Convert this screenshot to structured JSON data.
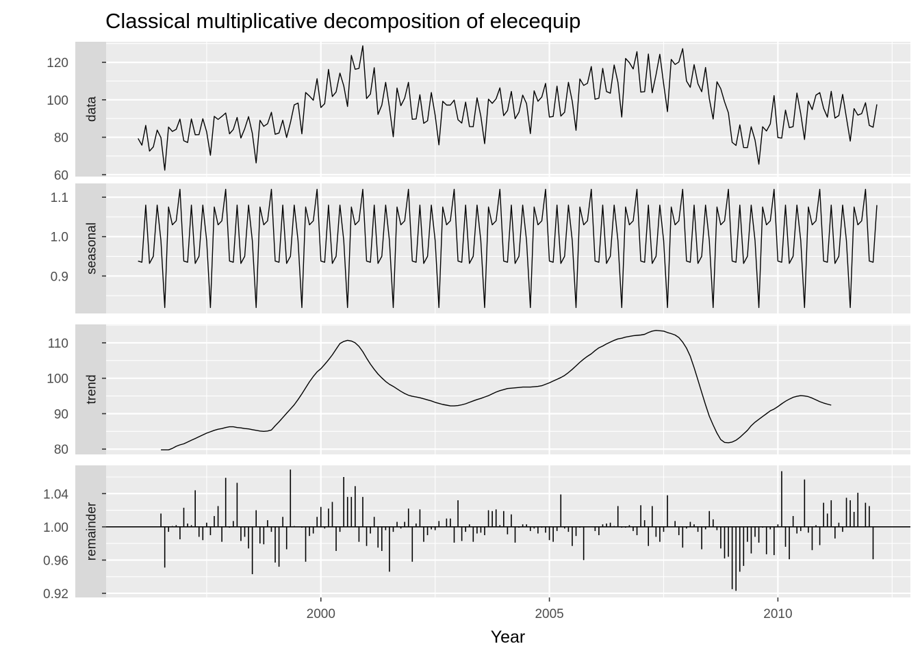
{
  "chart_data": {
    "type": "line",
    "title": "Classical multiplicative decomposition of elecequip",
    "xlabel": "Year",
    "x_start": 1996.0,
    "frequency": 12,
    "xlim": [
      1995.3,
      2012.9
    ],
    "x_ticks": [
      2000,
      2005,
      2010
    ],
    "x_tick_labels": [
      "2000",
      "2005",
      "2010"
    ],
    "panels": [
      {
        "name": "data",
        "ylim": [
          59,
          131
        ],
        "y_ticks": [
          60,
          80,
          100,
          120
        ],
        "y_tick_labels": [
          "60",
          "80",
          "100",
          "120"
        ],
        "values": [
          79.35,
          75.78,
          86.32,
          72.6,
          74.86,
          83.81,
          79.8,
          62.41,
          85.41,
          83.11,
          84.21,
          89.7,
          78.16,
          77.19,
          89.76,
          81.33,
          81.4,
          89.87,
          82.88,
          70.36,
          91.11,
          89.51,
          91.12,
          92.97,
          81.85,
          84.14,
          90.57,
          79.58,
          84.56,
          91.01,
          82.13,
          66.28,
          89.06,
          85.83,
          87.21,
          93.32,
          81.58,
          82.28,
          89.12,
          79.89,
          87.82,
          97.27,
          98.25,
          81.86,
          103.88,
          102.01,
          99.75,
          111.28,
          95.88,
          97.92,
          116.18,
          101.75,
          104.19,
          114.25,
          107.46,
          96.44,
          123.68,
          116.31,
          116.77,
          128.84,
          100.65,
          103.08,
          117.13,
          92.2,
          97.14,
          109.34,
          95.84,
          80.27,
          106.25,
          96.88,
          100.9,
          109.31,
          89.6,
          89.77,
          102.72,
          87.44,
          88.83,
          103.87,
          91.76,
          75.92,
          99.22,
          97.2,
          97.2,
          99.81,
          89.34,
          87.57,
          98.75,
          85.73,
          85.66,
          101.07,
          91.34,
          76.59,
          100.34,
          98.12,
          100.53,
          106.38,
          91.56,
          94.22,
          104.46,
          89.93,
          93.37,
          102.49,
          97.99,
          81.94,
          104.8,
          99.2,
          101.5,
          108.75,
          90.75,
          91.09,
          107.29,
          91.31,
          93.36,
          109.34,
          99.22,
          83.69,
          111.15,
          107.7,
          108.8,
          117.77,
          100.31,
          100.89,
          116.79,
          104.43,
          103.51,
          118.57,
          109.37,
          90.8,
          122.1,
          119.84,
          116.5,
          125.72,
          104.1,
          104.37,
          124.47,
          103.72,
          113.45,
          124.3,
          108.5,
          93.7,
          121.58,
          118.85,
          120.15,
          127.3,
          110.03,
          106.66,
          118.74,
          108.57,
          104.33,
          117.26,
          100.64,
          89.72,
          109.62,
          105.92,
          98.9,
          93.01,
          77.26,
          75.62,
          86.61,
          74.5,
          74.47,
          85.6,
          78.49,
          65.6,
          85.62,
          83.33,
          87.16,
          102.23,
          79.83,
          79.54,
          94.49,
          85.1,
          85.64,
          103.64,
          92.52,
          78.81,
          99.27,
          94.78,
          102.48,
          103.81,
          95.44,
          90.71,
          104.49,
          90.24,
          91.58,
          102.91,
          90.43,
          77.92,
          95.28,
          91.81,
          92.62,
          98.43,
          86.3,
          85.34,
          97.55
        ]
      },
      {
        "name": "seasonal",
        "ylim": [
          0.805,
          1.135
        ],
        "y_ticks": [
          0.9,
          1.0,
          1.1
        ],
        "y_tick_labels": [
          "0.9",
          "1.0",
          "1.1"
        ],
        "pattern": [
          0.938,
          0.935,
          1.08,
          0.932,
          0.95,
          1.08,
          0.99,
          0.82,
          1.075,
          1.03,
          1.04,
          1.12
        ]
      },
      {
        "name": "trend",
        "ylim": [
          78.5,
          115.2
        ],
        "y_ticks": [
          80,
          90,
          100,
          110
        ],
        "y_tick_labels": [
          "80",
          "90",
          "100",
          "110"
        ],
        "values": [
          null,
          null,
          null,
          null,
          null,
          null,
          79.8,
          79.8,
          79.8,
          80.2,
          80.8,
          81.2,
          81.5,
          82.0,
          82.5,
          83.0,
          83.5,
          84.0,
          84.5,
          84.9,
          85.3,
          85.6,
          85.8,
          86.1,
          86.3,
          86.3,
          86.1,
          86.0,
          85.8,
          85.7,
          85.5,
          85.3,
          85.1,
          85.0,
          85.1,
          85.4,
          86.6,
          87.7,
          88.9,
          90.1,
          91.3,
          92.5,
          94.0,
          95.6,
          97.3,
          99.0,
          100.5,
          101.8,
          102.7,
          103.9,
          105.2,
          106.6,
          108.2,
          109.8,
          110.4,
          110.7,
          110.5,
          110.0,
          109.0,
          107.5,
          105.7,
          104.0,
          102.5,
          101.2,
          100.1,
          99.1,
          98.3,
          97.7,
          97.0,
          96.3,
          95.7,
          95.2,
          94.9,
          94.7,
          94.5,
          94.2,
          93.9,
          93.6,
          93.2,
          92.9,
          92.6,
          92.4,
          92.2,
          92.2,
          92.3,
          92.5,
          92.8,
          93.2,
          93.6,
          94.0,
          94.3,
          94.7,
          95.1,
          95.6,
          96.1,
          96.5,
          96.8,
          97.1,
          97.2,
          97.3,
          97.4,
          97.5,
          97.5,
          97.5,
          97.6,
          97.7,
          97.9,
          98.3,
          98.7,
          99.2,
          99.7,
          100.2,
          100.8,
          101.6,
          102.5,
          103.5,
          104.5,
          105.4,
          106.2,
          106.9,
          107.8,
          108.6,
          109.1,
          109.7,
          110.2,
          110.7,
          111.1,
          111.3,
          111.6,
          111.8,
          112.0,
          112.1,
          112.2,
          112.4,
          112.9,
          113.3,
          113.5,
          113.4,
          113.3,
          112.9,
          112.6,
          112.2,
          111.5,
          110.2,
          108.5,
          106.2,
          103.0,
          99.5,
          96.0,
          92.5,
          89.3,
          86.8,
          84.5,
          82.7,
          81.9,
          81.8,
          82.0,
          82.5,
          83.3,
          84.3,
          85.3,
          86.6,
          87.6,
          88.4,
          89.2,
          90.0,
          90.8,
          91.3,
          92.0,
          92.8,
          93.5,
          94.1,
          94.6,
          94.9,
          95.1,
          95.0,
          94.8,
          94.4,
          93.9,
          93.4,
          93.0,
          92.7,
          92.4,
          null,
          null,
          null,
          null,
          null,
          null
        ]
      },
      {
        "name": "remainder",
        "type": "bar",
        "baseline": 1.0,
        "ylim": [
          0.915,
          1.074
        ],
        "y_ticks": [
          0.92,
          0.96,
          1.0,
          1.04
        ],
        "y_tick_labels": [
          "0.92",
          "0.96",
          "1.00",
          "1.04"
        ],
        "values": [
          null,
          null,
          null,
          null,
          null,
          null,
          1.016,
          0.951,
          0.994,
          1.001,
          1.002,
          0.985,
          1.023,
          1.004,
          1.002,
          1.044,
          0.988,
          0.984,
          1.005,
          0.99,
          1.013,
          1.025,
          0.982,
          1.059,
          0.999,
          1.007,
          1.053,
          0.983,
          0.988,
          0.974,
          0.943,
          1.02,
          0.98,
          0.979,
          1.008,
          0.994,
          0.957,
          0.952,
          1.012,
          0.973,
          1.069,
          1.001,
          1.0,
          0.999,
          0.958,
          0.989,
          0.992,
          1.012,
          1.024,
          0.998,
          1.022,
          1.03,
          0.971,
          0.994,
          1.06,
          1.036,
          1.036,
          1.049,
          0.982,
          1.036,
          0.977,
          0.992,
          1.012,
          0.975,
          0.971,
          0.996,
          0.946,
          0.994,
          1.006,
          0.998,
          1.006,
          1.022,
          0.958,
          1.004,
          1.021,
          0.982,
          0.99,
          0.997,
          0.996,
          1.007,
          1.0,
          1.01,
          1.01,
          0.981,
          1.032,
          0.983,
          0.994,
          1.003,
          0.982,
          0.992,
          0.993,
          0.99,
          1.02,
          1.019,
          1.021,
          1.002,
          1.019,
          0.991,
          1.015,
          0.981,
          0.999,
          1.003,
          1.003,
          0.995,
          0.998,
          0.992,
          0.999,
          0.993,
          0.984,
          0.982,
          0.995,
          1.039,
          0.998,
          0.994,
          0.977,
          0.989,
          0.999,
          0.96,
          1.0,
          1.0,
          0.995,
          0.99,
          1.003,
          1.004,
          1.005,
          1.001,
          1.025,
          0.999,
          0.999,
          1.002,
          0.995,
          0.99,
          1.026,
          1.008,
          0.977,
          1.025,
          0.988,
          0.982,
          0.994,
          1.038,
          1.0,
          1.007,
          0.99,
          0.975,
          0.998,
          1.006,
          1.003,
          0.994,
          0.973,
          0.997,
          1.019,
          1.009,
          0.996,
          0.974,
          0.962,
          0.964,
          0.925,
          0.923,
          0.946,
          0.953,
          0.982,
          0.968,
          0.988,
          0.981,
          0.999,
          0.967,
          0.997,
          0.966,
          1.003,
          1.067,
          0.976,
          0.961,
          1.013,
          0.992,
          0.995,
          1.057,
          0.993,
          0.972,
          1.002,
          0.978,
          1.029,
          1.016,
          1.032,
          0.986,
          1.005,
          0.994,
          1.035,
          1.032,
          1.018,
          1.041,
          1.0,
          1.029,
          1.025,
          0.961,
          null,
          null,
          null,
          null,
          null,
          null
        ]
      }
    ]
  }
}
